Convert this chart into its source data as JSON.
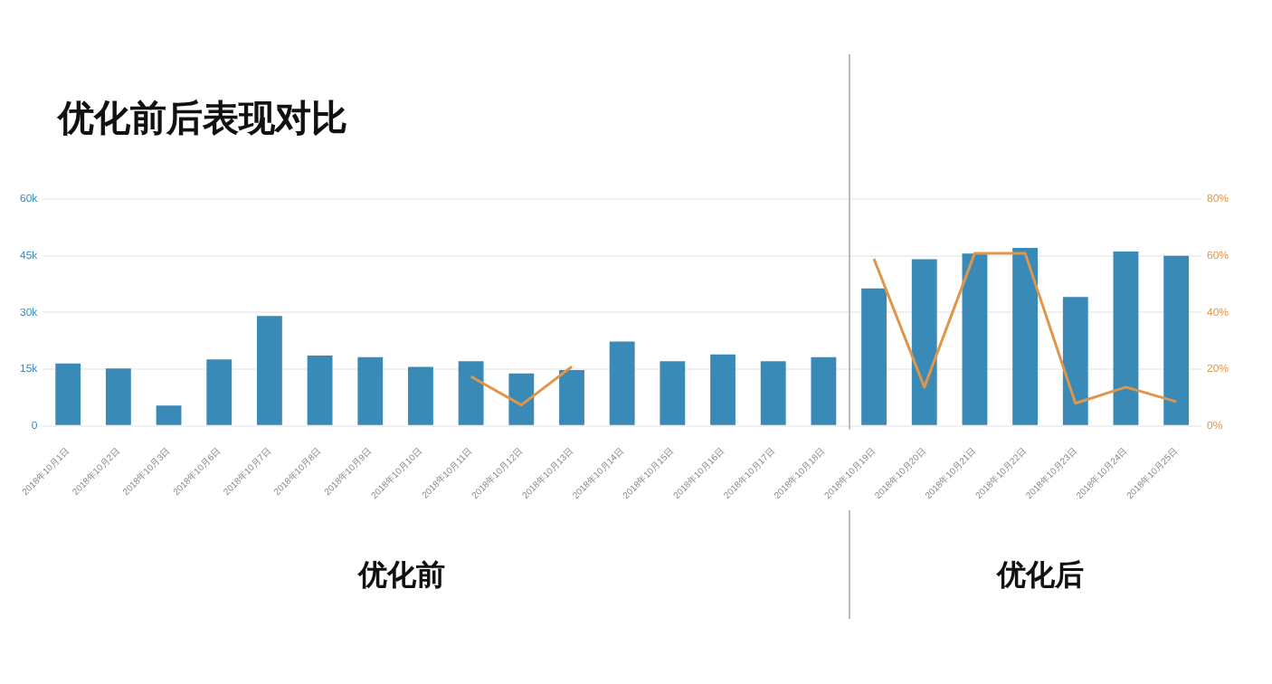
{
  "chart_data": {
    "type": "bar",
    "title": "优化前后表现对比",
    "categories": [
      "2018年10月1日",
      "2018年10月2日",
      "2018年10月3日",
      "2018年10月6日",
      "2018年10月7日",
      "2018年10月8日",
      "2018年10月9日",
      "2018年10月10日",
      "2018年10月11日",
      "2018年10月12日",
      "2018年10月13日",
      "2018年10月14日",
      "2018年10月15日",
      "2018年10月16日",
      "2018年10月17日",
      "2018年10月18日",
      "2018年10月19日",
      "2018年10月20日",
      "2018年10月21日",
      "2018年10月22日",
      "2018年10月23日",
      "2018年10月24日",
      "2018年10月25日"
    ],
    "series": [
      {
        "color": "#3a8ab8",
        "values": [
          16500,
          15200,
          5400,
          17600,
          29100,
          18600,
          18200,
          15600,
          17100,
          13900,
          14800,
          22300,
          17100,
          18900,
          17100,
          18200,
          36400,
          44100,
          45600,
          47100,
          34100,
          46100,
          45000
        ]
      },
      {
        "type": "line",
        "axis": "y2",
        "color": "#e0964a",
        "values": [
          null,
          null,
          null,
          null,
          null,
          null,
          null,
          null,
          17.4,
          7.4,
          20.9,
          null,
          null,
          null,
          null,
          null,
          58.9,
          13.7,
          60.9,
          60.9,
          8,
          13.7,
          8.6
        ]
      }
    ],
    "ylim": [
      0,
      60000
    ],
    "yticks": [
      0,
      {
        "value": 15000,
        "label": "15k"
      },
      {
        "value": 30000,
        "label": "30k"
      },
      {
        "value": 45000,
        "label": "45k"
      },
      {
        "value": 60000,
        "label": "60k"
      }
    ],
    "y2lim": [
      0,
      80
    ],
    "y2ticks": [
      {
        "value": 0,
        "label": "0%"
      },
      {
        "value": 20,
        "label": "20%"
      },
      {
        "value": 40,
        "label": "40%"
      },
      {
        "value": 60,
        "label": "60%"
      },
      {
        "value": 80,
        "label": "80%"
      }
    ],
    "ref_lines": [
      {
        "axis": "x",
        "value": "2018年10月19日",
        "color": "#bbbbbb"
      }
    ],
    "grid": "y",
    "marker": "none",
    "legend": false,
    "annotations": [
      "优化前",
      "优化后"
    ]
  }
}
